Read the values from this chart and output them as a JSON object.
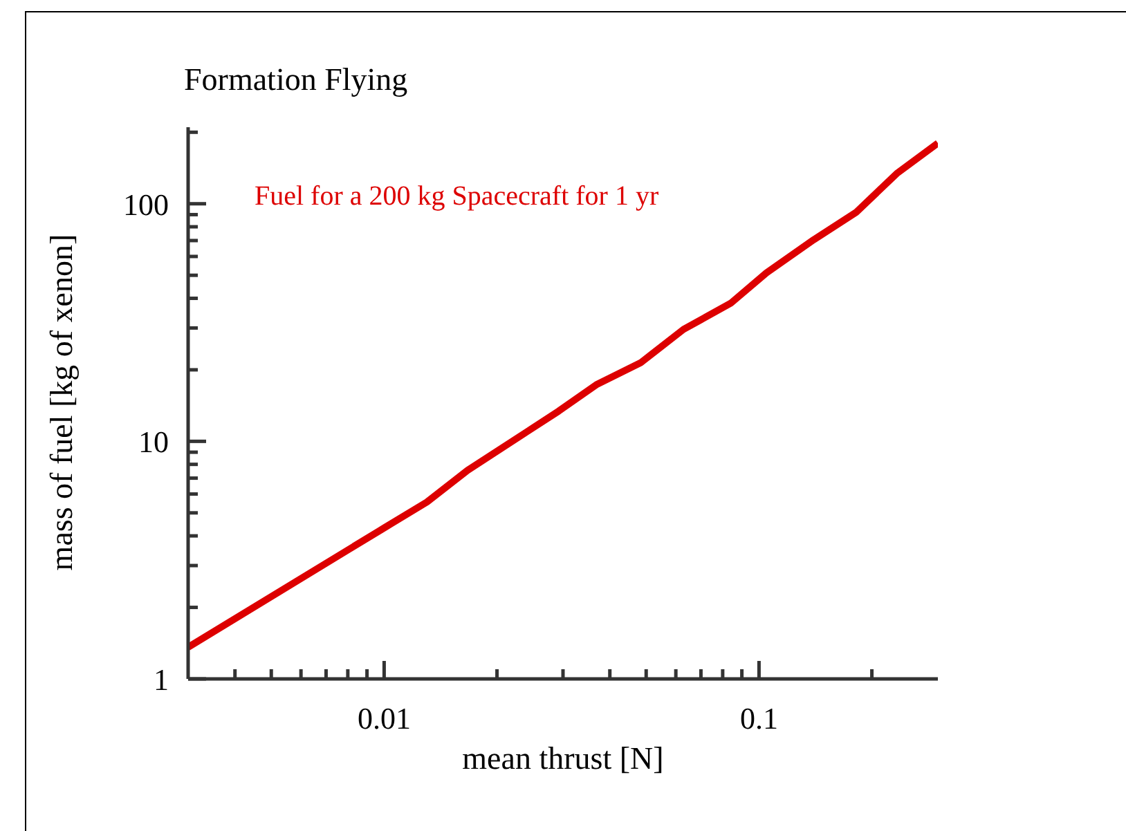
{
  "chart_data": {
    "type": "line",
    "title": "Formation Flying",
    "xlabel": "mean thrust [N]",
    "ylabel": "mass of fuel [kg of xenon]",
    "annotations": [
      "Fuel for a 200 kg Spacecraft for 1 yr"
    ],
    "log": "xy",
    "grid": false,
    "legend": false,
    "marker": "none",
    "line_style": "solid",
    "xlim": [
      0.003,
      0.3
    ],
    "xticks": [
      {
        "value": 0.004,
        "label": null
      },
      {
        "value": 0.005,
        "label": null
      },
      {
        "value": 0.006,
        "label": null
      },
      {
        "value": 0.007,
        "label": null
      },
      {
        "value": 0.008,
        "label": null
      },
      {
        "value": 0.009,
        "label": null
      },
      0.01,
      {
        "value": 0.02,
        "label": null
      },
      {
        "value": 0.03,
        "label": null
      },
      {
        "value": 0.04,
        "label": null
      },
      {
        "value": 0.05,
        "label": null
      },
      {
        "value": 0.06,
        "label": null
      },
      {
        "value": 0.07,
        "label": null
      },
      {
        "value": 0.08,
        "label": null
      },
      {
        "value": 0.09,
        "label": null
      },
      0.1,
      {
        "value": 0.2,
        "label": null
      }
    ],
    "ylim": [
      1,
      210
    ],
    "yticks": [
      1,
      {
        "value": 2,
        "label": null
      },
      {
        "value": 3,
        "label": null
      },
      {
        "value": 4,
        "label": null
      },
      {
        "value": 5,
        "label": null
      },
      {
        "value": 6,
        "label": null
      },
      {
        "value": 7,
        "label": null
      },
      {
        "value": 8,
        "label": null
      },
      {
        "value": 9,
        "label": null
      },
      10,
      {
        "value": 20,
        "label": null
      },
      {
        "value": 30,
        "label": null
      },
      {
        "value": 40,
        "label": null
      },
      {
        "value": 50,
        "label": null
      },
      {
        "value": 60,
        "label": null
      },
      {
        "value": 70,
        "label": null
      },
      {
        "value": 80,
        "label": null
      },
      {
        "value": 90,
        "label": null
      },
      100,
      {
        "value": 200,
        "label": null
      }
    ],
    "series": [
      {
        "color": "#dd0000",
        "x": [
          0.003,
          0.01,
          0.013,
          0.0167,
          0.0292,
          0.0368,
          0.0483,
          0.0629,
          0.084,
          0.1047,
          0.14,
          0.182,
          0.233,
          0.3
        ],
        "values": [
          1.36,
          4.32,
          5.55,
          7.55,
          13.4,
          17.3,
          21.4,
          29.6,
          38.1,
          51.2,
          70.6,
          92.3,
          134,
          180
        ]
      }
    ]
  }
}
